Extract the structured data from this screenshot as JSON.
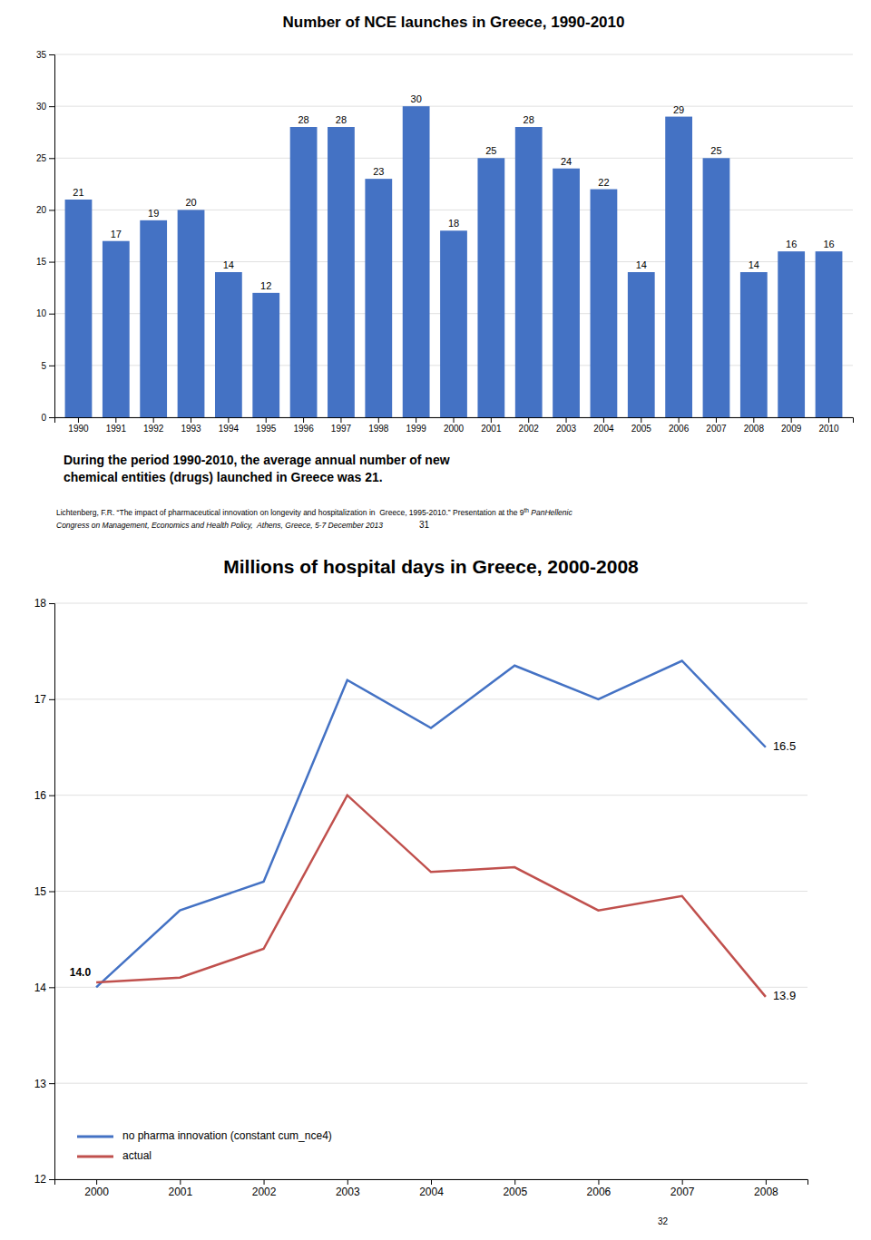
{
  "chart_data": [
    {
      "type": "bar",
      "title": "Number of NCE launches in Greece, 1990-2010",
      "categories": [
        "1990",
        "1991",
        "1992",
        "1993",
        "1994",
        "1995",
        "1996",
        "1997",
        "1998",
        "1999",
        "2000",
        "2001",
        "2002",
        "2003",
        "2004",
        "2005",
        "2006",
        "2007",
        "2008",
        "2009",
        "2010"
      ],
      "values": [
        21,
        17,
        19,
        20,
        14,
        12,
        28,
        28,
        23,
        30,
        18,
        25,
        28,
        24,
        22,
        14,
        29,
        25,
        14,
        16,
        16
      ],
      "color": "#4472C4",
      "ylim": [
        0,
        35
      ],
      "yticks": [
        0,
        5,
        10,
        15,
        20,
        25,
        30,
        35
      ],
      "grid": true,
      "data_labels": true,
      "annotations": [
        "During the period 1990-2010, the average annual number of new\nchemical entities (drugs) launched in Greece was 21.",
        "Lichtenberg, F.R. “The impact of pharmaceutical innovation on longevity and hospitalization in  Greece, 1995-2010.” Presentation at the 9",
        "th",
        " PanHellenic\nCongress on Management, Economics and Health Policy,  Athens, Greece, 5-7 December 2013",
        "31"
      ]
    },
    {
      "type": "line",
      "title": "Millions of hospital days in Greece, 2000-2008",
      "categories": [
        "2000",
        "2001",
        "2002",
        "2003",
        "2004",
        "2005",
        "2006",
        "2007",
        "2008"
      ],
      "series": [
        {
          "name": "no pharma innovation (constant cum_nce4)",
          "color": "#4472C4",
          "values": [
            14.0,
            14.8,
            15.1,
            17.2,
            16.7,
            17.35,
            17.0,
            17.4,
            16.5
          ]
        },
        {
          "name": "actual",
          "color": "#C0504D",
          "values": [
            14.05,
            14.1,
            14.4,
            16.0,
            15.2,
            15.25,
            14.8,
            14.95,
            13.9
          ]
        }
      ],
      "ylim": [
        12,
        18
      ],
      "yticks": [
        12,
        13,
        14,
        15,
        16,
        17,
        18
      ],
      "grid": true,
      "legend": "bottom-left",
      "annotations": [
        "14.0",
        "16.5",
        "13.9",
        "32"
      ]
    }
  ]
}
